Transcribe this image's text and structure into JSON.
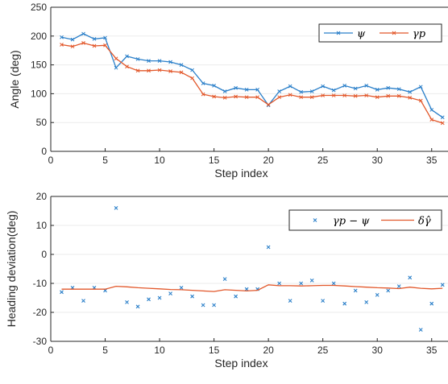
{
  "colors": {
    "psi": "#2a7fc9",
    "gamma": "#e2572a",
    "axis": "#262626",
    "grid": "#ebebeb"
  },
  "chart_data": [
    {
      "type": "line",
      "xlabel": "Step index",
      "ylabel": "Angle (deg)",
      "xlim": [
        0,
        36.5
      ],
      "ylim": [
        0,
        250
      ],
      "xticks": [
        0,
        5,
        10,
        15,
        20,
        25,
        30,
        35
      ],
      "yticks": [
        0,
        50,
        100,
        150,
        200,
        250
      ],
      "legend_position": "top-right",
      "x": [
        1,
        2,
        3,
        4,
        5,
        6,
        7,
        8,
        9,
        10,
        11,
        12,
        13,
        14,
        15,
        16,
        17,
        18,
        19,
        20,
        21,
        22,
        23,
        24,
        25,
        26,
        27,
        28,
        29,
        30,
        31,
        32,
        33,
        34,
        35,
        36
      ],
      "series": [
        {
          "name": "ψ",
          "color": "#2a7fc9",
          "values": [
            198,
            194,
            204,
            195,
            197,
            145,
            165,
            160,
            157,
            157,
            155,
            150,
            141,
            118,
            114,
            104,
            110,
            107,
            107,
            80,
            104,
            113,
            103,
            104,
            113,
            106,
            114,
            109,
            114,
            107,
            110,
            108,
            103,
            112,
            72,
            59
          ]
        },
        {
          "name": "γp",
          "color": "#e2572a",
          "values": [
            185,
            182,
            188,
            183,
            184,
            161,
            147,
            140,
            140,
            141,
            139,
            137,
            127,
            99,
            95,
            93,
            95,
            94,
            94,
            81,
            94,
            98,
            94,
            94,
            97,
            97,
            97,
            96,
            97,
            94,
            96,
            96,
            93,
            88,
            55,
            49
          ]
        }
      ]
    },
    {
      "type": "scatter",
      "xlabel": "Step index",
      "ylabel": "Heading deviation(deg)",
      "xlim": [
        0,
        36.5
      ],
      "ylim": [
        -30,
        20
      ],
      "xticks": [
        0,
        5,
        10,
        15,
        20,
        25,
        30,
        35
      ],
      "yticks": [
        -30,
        -20,
        -10,
        0,
        10,
        20
      ],
      "legend_position": "top-right",
      "x": [
        1,
        2,
        3,
        4,
        5,
        6,
        7,
        8,
        9,
        10,
        11,
        12,
        13,
        14,
        15,
        16,
        17,
        18,
        19,
        20,
        21,
        22,
        23,
        24,
        25,
        26,
        27,
        28,
        29,
        30,
        31,
        32,
        33,
        34,
        35,
        36
      ],
      "series": [
        {
          "name": "γp − ψ",
          "kind": "points",
          "color": "#2a7fc9",
          "values": [
            -13,
            -11.5,
            -16,
            -11.5,
            -12.5,
            16,
            -16.5,
            -18,
            -15.5,
            -15,
            -13.5,
            -11.5,
            -14.5,
            -17.5,
            -17.5,
            -8.5,
            -14.5,
            -12,
            -12,
            2.5,
            -10,
            -16,
            -10,
            -9,
            -16,
            -10,
            -17,
            -12.5,
            -16.5,
            -14,
            -12.5,
            -11,
            -8,
            -26,
            -17,
            -10.5
          ]
        },
        {
          "name": "δγ̂",
          "kind": "line",
          "color": "#e2572a",
          "values": [
            -12,
            -12,
            -12,
            -12,
            -12,
            -11,
            -11.2,
            -11.5,
            -11.7,
            -11.9,
            -12.1,
            -12.2,
            -12.4,
            -12.6,
            -12.8,
            -12.2,
            -12.4,
            -12.6,
            -12.4,
            -10.5,
            -10.8,
            -10.8,
            -10.9,
            -10.8,
            -10.7,
            -10.7,
            -10.9,
            -11.1,
            -11.3,
            -11.5,
            -11.6,
            -11.8,
            -11.3,
            -11.7,
            -11.9,
            -11.7
          ]
        }
      ]
    }
  ]
}
